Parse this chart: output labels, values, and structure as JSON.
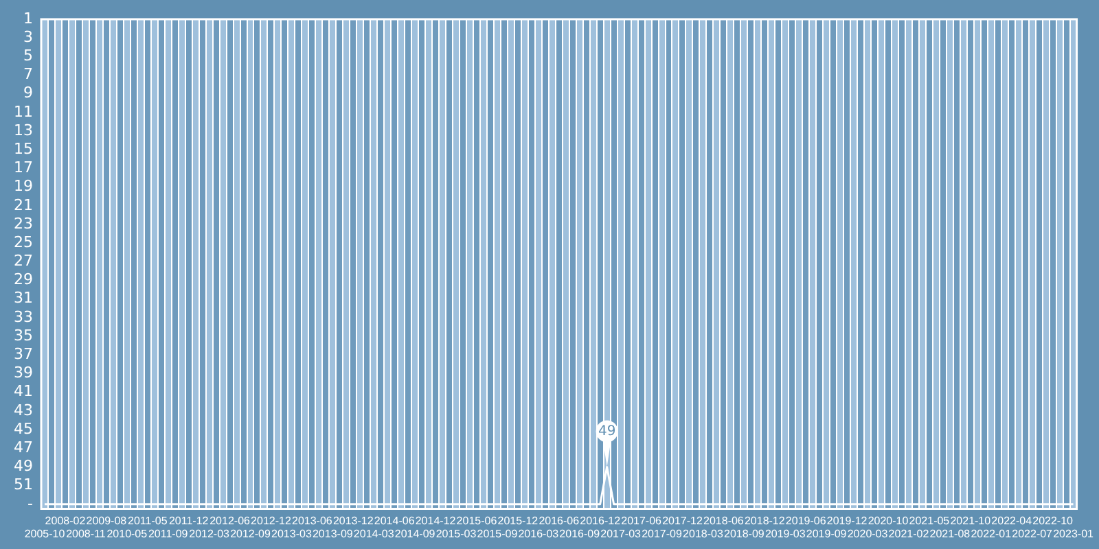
{
  "chart_data": {
    "type": "line",
    "categories": [
      "2005-10",
      null,
      null,
      "2008-02",
      null,
      null,
      "2008-11",
      null,
      null,
      "2009-08",
      null,
      null,
      "2010-05",
      null,
      null,
      "2011-05",
      null,
      null,
      "2011-09",
      null,
      null,
      "2011-12",
      null,
      null,
      "2012-03",
      null,
      null,
      "2012-06",
      null,
      null,
      "2012-09",
      null,
      null,
      "2012-12",
      null,
      null,
      "2013-03",
      null,
      null,
      "2013-06",
      null,
      null,
      "2013-09",
      null,
      null,
      "2013-12",
      null,
      null,
      "2014-03",
      null,
      null,
      "2014-06",
      null,
      null,
      "2014-09",
      null,
      null,
      "2014-12",
      null,
      null,
      "2015-03",
      null,
      null,
      "2015-06",
      null,
      null,
      "2015-09",
      null,
      null,
      "2015-12",
      null,
      null,
      "2016-03",
      null,
      null,
      "2016-06",
      null,
      null,
      "2016-09",
      null,
      null,
      "2016-12",
      null,
      null,
      "2017-03",
      null,
      null,
      "2017-06",
      null,
      null,
      "2017-09",
      null,
      null,
      "2017-12",
      null,
      null,
      "2018-03",
      null,
      null,
      "2018-06",
      null,
      null,
      "2018-09",
      null,
      null,
      "2018-12",
      null,
      null,
      "2019-03",
      null,
      null,
      "2019-06",
      null,
      null,
      "2019-09",
      null,
      null,
      "2019-12",
      null,
      null,
      "2020-03",
      null,
      null,
      "2020-10",
      null,
      null,
      "2021-02",
      null,
      null,
      "2021-05",
      null,
      null,
      "2021-08",
      null,
      null,
      "2021-10",
      null,
      null,
      "2022-01",
      null,
      null,
      "2022-04",
      null,
      null,
      "2022-07",
      null,
      null,
      "2022-10",
      null,
      null,
      "2023-01"
    ],
    "series": [
      {
        "color": "#ffffff",
        "values": [
          53,
          53,
          53,
          53,
          53,
          53,
          53,
          53,
          53,
          53,
          53,
          53,
          53,
          53,
          53,
          53,
          53,
          53,
          53,
          53,
          53,
          53,
          53,
          53,
          53,
          53,
          53,
          53,
          53,
          53,
          53,
          53,
          53,
          53,
          53,
          53,
          53,
          53,
          53,
          53,
          53,
          53,
          53,
          53,
          53,
          53,
          53,
          53,
          53,
          53,
          53,
          53,
          53,
          53,
          53,
          53,
          53,
          53,
          53,
          53,
          53,
          53,
          53,
          53,
          53,
          53,
          53,
          53,
          53,
          53,
          53,
          53,
          53,
          53,
          53,
          53,
          53,
          53,
          53,
          53,
          53,
          53,
          49,
          53,
          53,
          53,
          53,
          53,
          53,
          53,
          53,
          53,
          53,
          53,
          53,
          53,
          53,
          53,
          53,
          53,
          53,
          53,
          53,
          53,
          53,
          53,
          53,
          53,
          53,
          53,
          53,
          53,
          53,
          53,
          53,
          53,
          53,
          53,
          53,
          53,
          53,
          53,
          53,
          53,
          53,
          53,
          53,
          53,
          53,
          53,
          53,
          53,
          53,
          53,
          53,
          53,
          53,
          53,
          53,
          53,
          53,
          53,
          53,
          53,
          53,
          53,
          53,
          53,
          53,
          53,
          53
        ],
        "value_labels": [
          null,
          null,
          null,
          null,
          null,
          null,
          null,
          null,
          null,
          null,
          null,
          null,
          null,
          null,
          null,
          null,
          null,
          null,
          null,
          null,
          null,
          null,
          null,
          null,
          null,
          null,
          null,
          null,
          null,
          null,
          null,
          null,
          null,
          null,
          null,
          null,
          null,
          null,
          null,
          null,
          null,
          null,
          null,
          null,
          null,
          null,
          null,
          null,
          null,
          null,
          null,
          null,
          null,
          null,
          null,
          null,
          null,
          null,
          null,
          null,
          null,
          null,
          null,
          null,
          null,
          null,
          null,
          null,
          null,
          null,
          null,
          null,
          null,
          null,
          null,
          null,
          null,
          null,
          null,
          null,
          null,
          null,
          "49",
          null,
          null,
          null,
          null,
          null,
          null,
          null,
          null,
          null,
          null,
          null,
          null,
          null,
          null,
          null,
          null,
          null,
          null,
          null,
          null,
          null,
          null,
          null,
          null,
          null,
          null,
          null,
          null,
          null,
          null,
          null,
          null,
          null,
          null,
          null,
          null,
          null,
          null,
          null,
          null,
          null,
          null,
          null,
          null,
          null,
          null,
          null,
          null,
          null,
          null,
          null,
          null,
          null,
          null,
          null,
          null,
          null,
          null,
          null,
          null,
          null,
          null,
          null,
          null,
          null,
          null,
          null,
          null
        ]
      }
    ],
    "ylim": [
      53.5,
      1
    ],
    "yticks": [
      1,
      3,
      5,
      7,
      9,
      11,
      13,
      15,
      17,
      19,
      21,
      23,
      25,
      27,
      29,
      31,
      33,
      35,
      37,
      39,
      41,
      43,
      45,
      47,
      49,
      51,
      {
        "value": 53,
        "label": "-"
      }
    ],
    "grid": "x",
    "marker": "none",
    "legend": false
  }
}
